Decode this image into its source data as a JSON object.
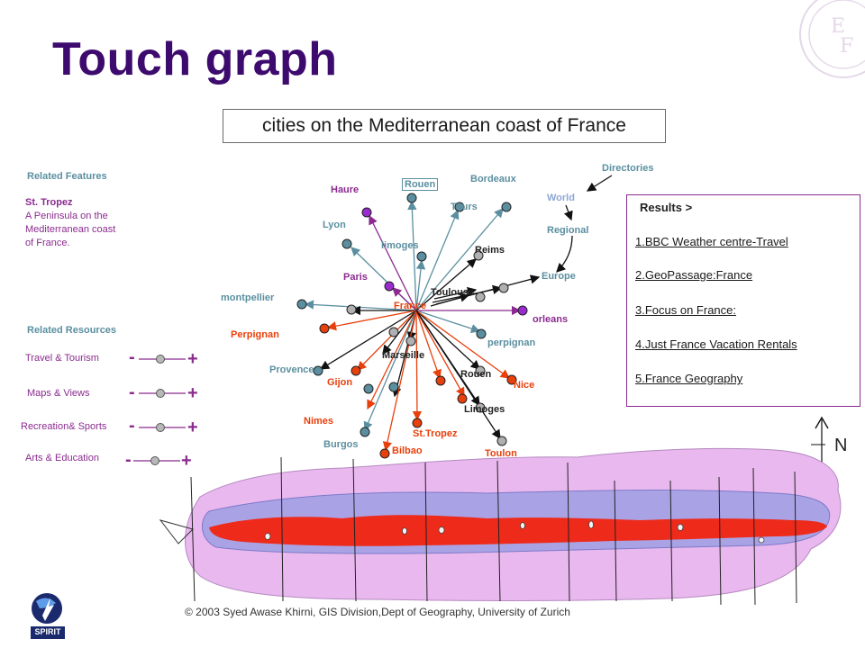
{
  "title": "Touch graph",
  "subtitle": "cities on the Mediterranean coast of France",
  "related_features": {
    "header": "Related Features",
    "item_title": "St. Tropez",
    "item_lines": [
      "A Peninsula on the",
      "Mediterranean coast",
      "of France."
    ]
  },
  "related_resources": {
    "header": "Related Resources",
    "items": [
      {
        "label": "Travel & Tourism",
        "minus": "-",
        "plus": "+"
      },
      {
        "label": "Maps & Views",
        "minus": "-",
        "plus": "+"
      },
      {
        "label": "Recreation& Sports",
        "minus": "-",
        "plus": "+"
      },
      {
        "label": "Arts & Education",
        "minus": "-",
        "plus": "+"
      }
    ]
  },
  "results": {
    "header": "Results >",
    "items": [
      "1.BBC Weather centre-Travel",
      "2.GeoPassage:France",
      "3.Focus on France:",
      "4.Just France Vacation Rentals",
      "5.France Geography"
    ]
  },
  "graph": {
    "center": "France",
    "hub": "Toulouse",
    "directories": [
      "Directories",
      "World",
      "Regional",
      "Europe"
    ],
    "nodes": {
      "haure": "Haure",
      "rouen_top": "Rouen",
      "bordeaux": "Bordeaux",
      "tours": "Tours",
      "lyon": "Lyon",
      "limoges_top": "limoges",
      "reims": "Reims",
      "paris": "Paris",
      "montpellier": "montpellier",
      "orleans": "orleans",
      "perpignan_left": "Perpignan",
      "perpignan_right": "perpignan",
      "provence": "Provence",
      "marseille": "Marseille",
      "gijon": "Gijon",
      "rouen_bottom": "Rouen",
      "nice": "Nice",
      "nimes": "Nimes",
      "limoges_bottom": "Limoges",
      "stropez": "St.Tropez",
      "burgos": "Burgos",
      "bilbao": "Bilbao",
      "toulon": "Toulon"
    }
  },
  "map": {
    "north_label": "N"
  },
  "copyright": "© 2003 Syed Awase Khirni, GIS Division,Dept of Geography, University of Zurich",
  "logo_text": "SPIRIT",
  "colors": {
    "title": "#3d0a6e",
    "purple": "#8b2b8f",
    "teal": "#5b8fa0",
    "orange": "#e8400c",
    "map_outer": "#e9b8ee",
    "map_mid": "#a9a3e6",
    "map_core": "#ee2a1a"
  }
}
